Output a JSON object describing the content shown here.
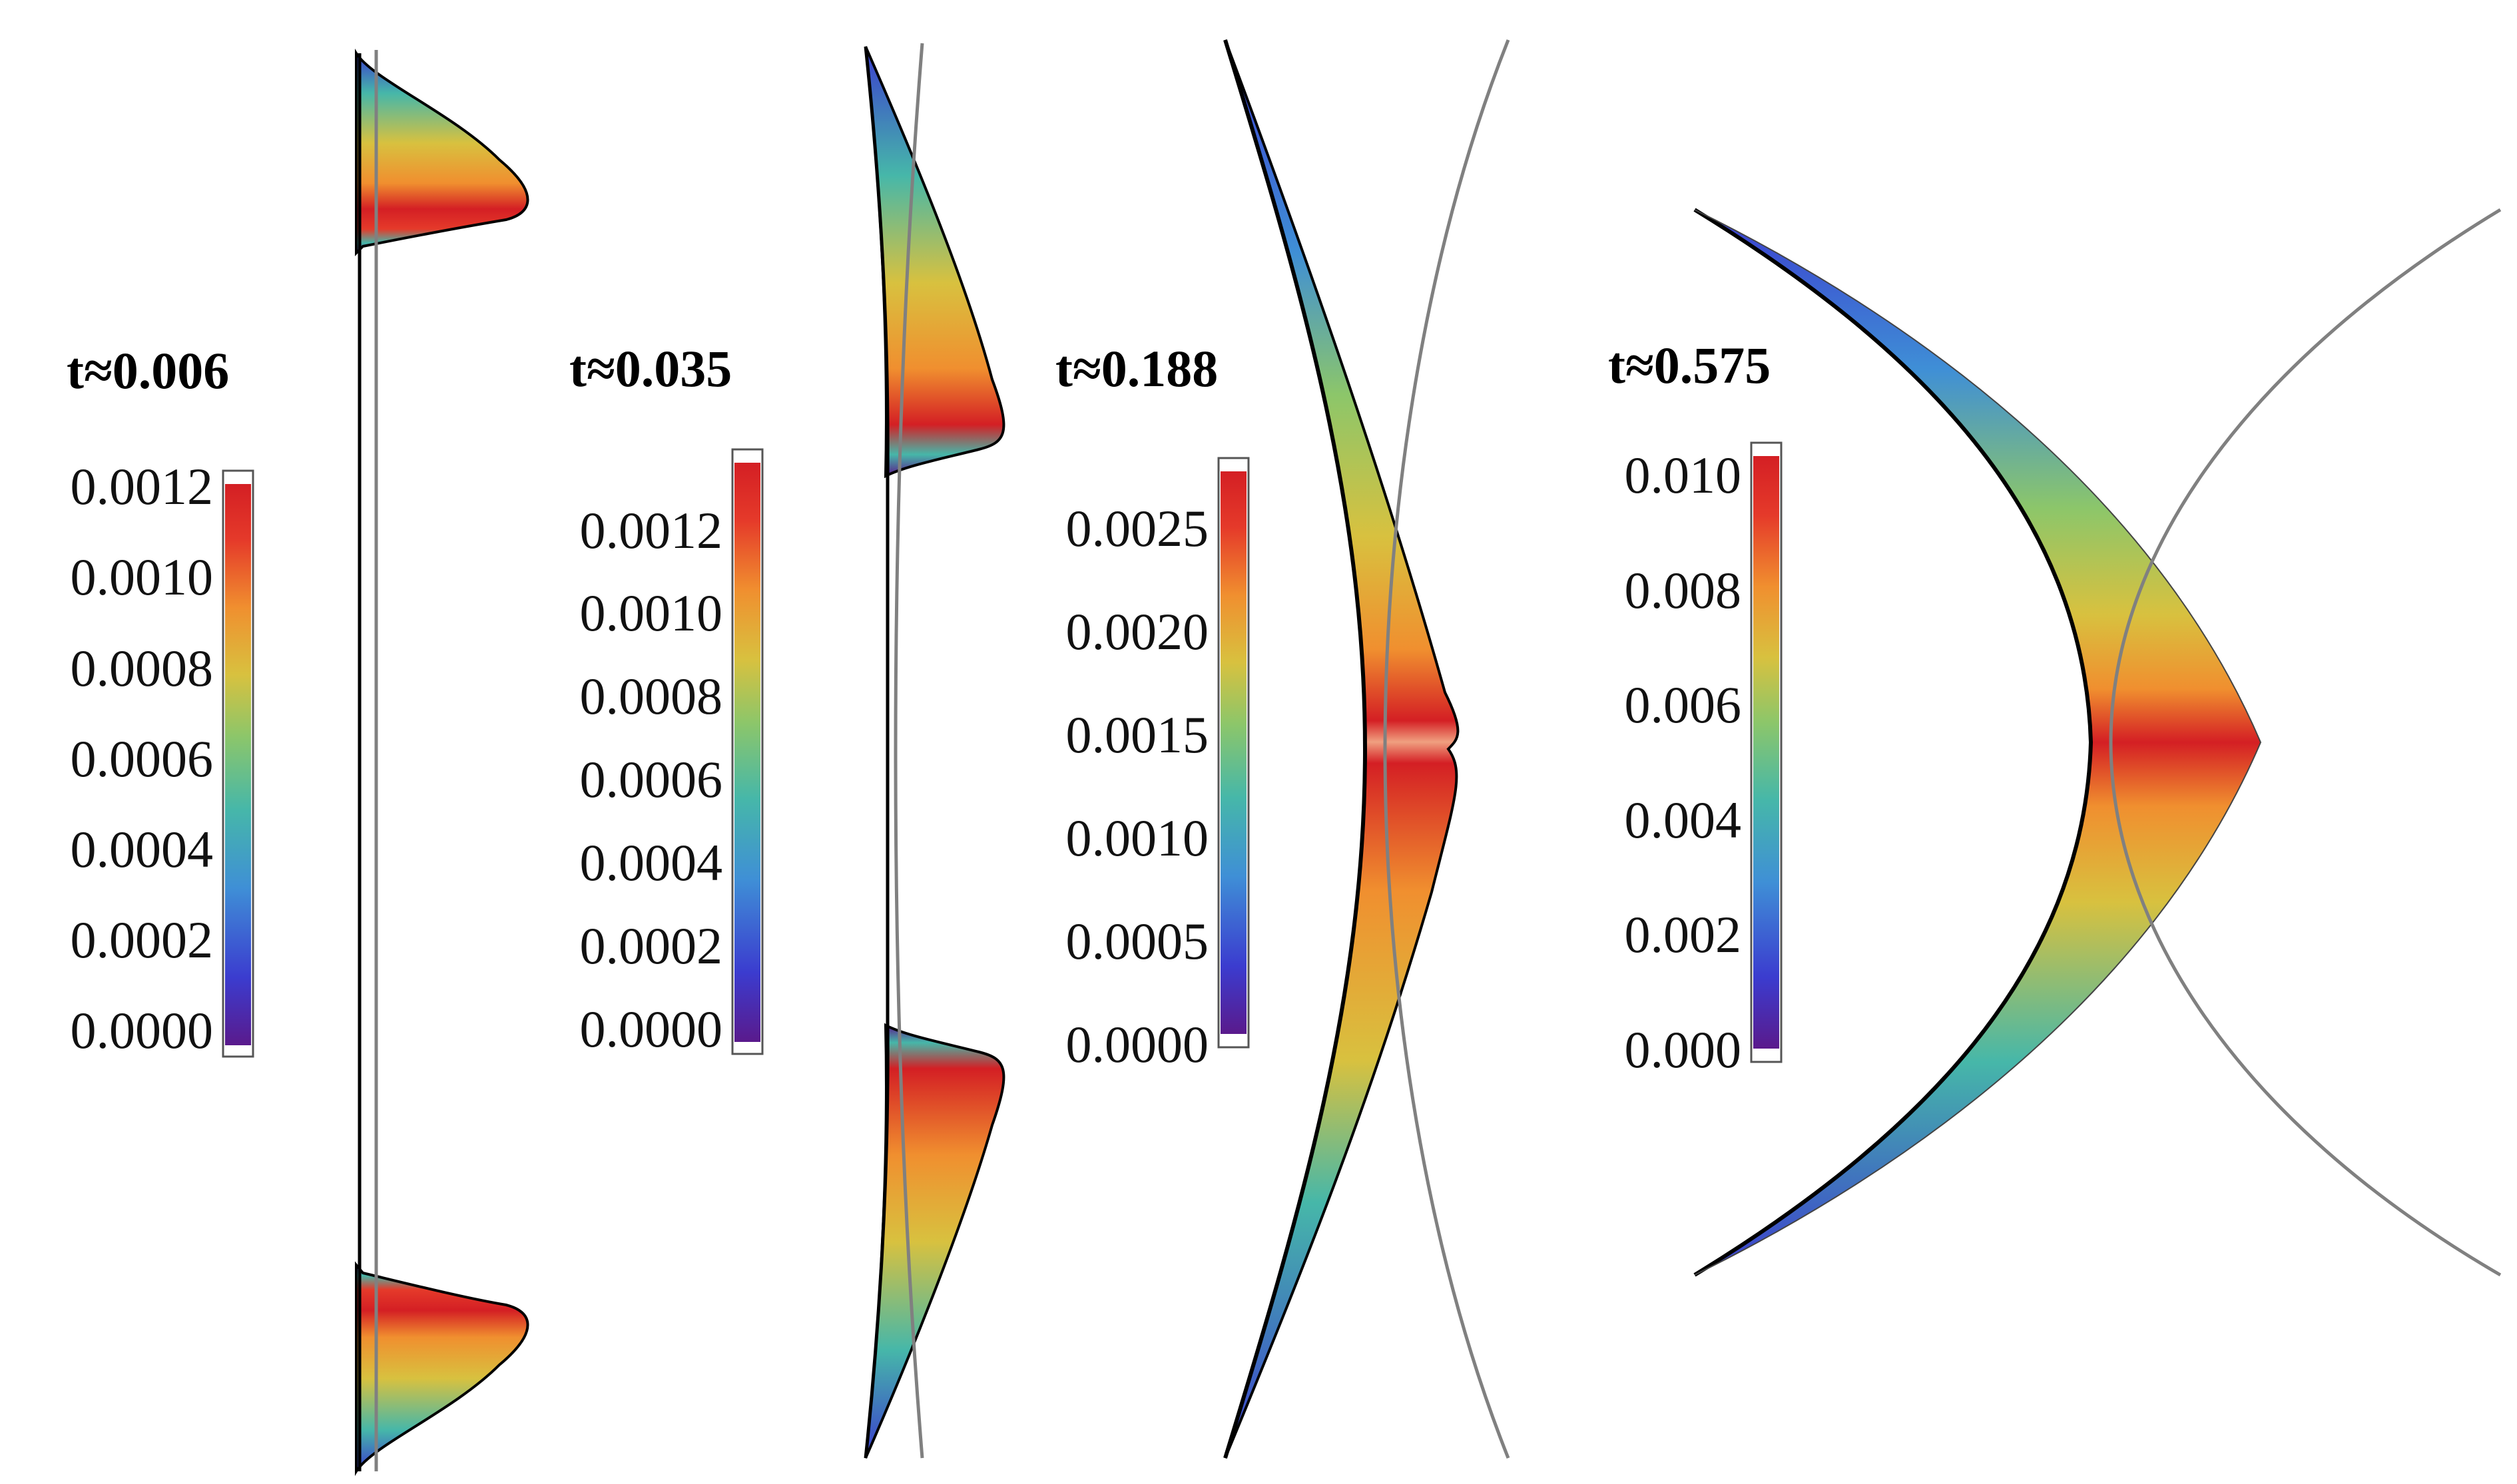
{
  "colormap": [
    "#5a1a8c",
    "#3b3ccf",
    "#3f8fd6",
    "#46b7a9",
    "#8cc66a",
    "#d8c13f",
    "#f08f2f",
    "#e53a2a",
    "#d41f24"
  ],
  "colors": {
    "outline": "#000000",
    "reference_curve": "#808080",
    "background": "#ffffff"
  },
  "panels": [
    {
      "time_label": "t≈0.006",
      "colorbar": {
        "ticks": [
          "0.0012",
          "0.0010",
          "0.0008",
          "0.0006",
          "0.0004",
          "0.0002",
          "0.0000"
        ]
      }
    },
    {
      "time_label": "t≈0.035",
      "colorbar": {
        "ticks": [
          "0.0012",
          "0.0010",
          "0.0008",
          "0.0006",
          "0.0004",
          "0.0002",
          "0.0000"
        ]
      }
    },
    {
      "time_label": "t≈0.188",
      "colorbar": {
        "ticks": [
          "0.0025",
          "0.0020",
          "0.0015",
          "0.0010",
          "0.0005",
          "0.0000"
        ]
      }
    },
    {
      "time_label": "t≈0.575",
      "colorbar": {
        "ticks": [
          "0.010",
          "0.008",
          "0.006",
          "0.004",
          "0.002",
          "0.000"
        ]
      }
    }
  ]
}
